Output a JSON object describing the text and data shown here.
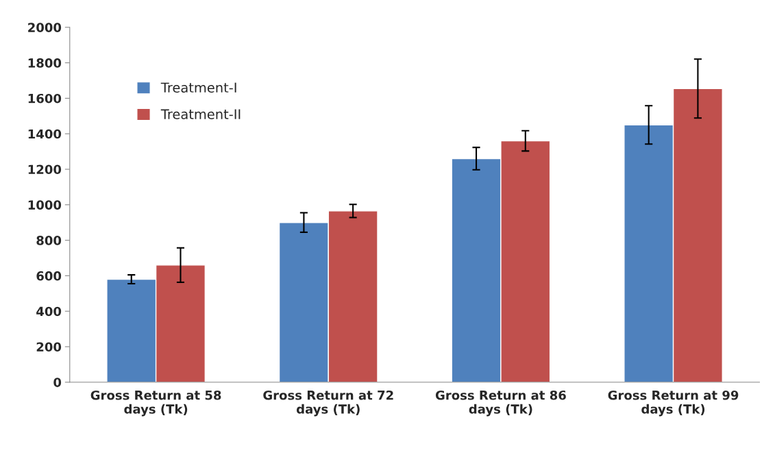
{
  "chart_data": {
    "type": "bar",
    "categories": [
      "Gross Return at 58\ndays (Tk)",
      "Gross Return at 72\ndays (Tk)",
      "Gross Return at 86\ndays (Tk)",
      "Gross Return at 99\ndays (Tk)"
    ],
    "series": [
      {
        "name": "Treatment-I",
        "color": "#4f81bd",
        "values": [
          580,
          900,
          1260,
          1450
        ],
        "errors": [
          25,
          55,
          63,
          108
        ]
      },
      {
        "name": "Treatment-II",
        "color": "#c0504d",
        "values": [
          660,
          965,
          1360,
          1655
        ],
        "errors": [
          97,
          37,
          57,
          166
        ]
      }
    ],
    "ylim": [
      0,
      2000
    ],
    "yticks": [
      0,
      200,
      400,
      600,
      800,
      1000,
      1200,
      1400,
      1600,
      1800,
      2000
    ],
    "grid": false,
    "legend": "top left"
  }
}
